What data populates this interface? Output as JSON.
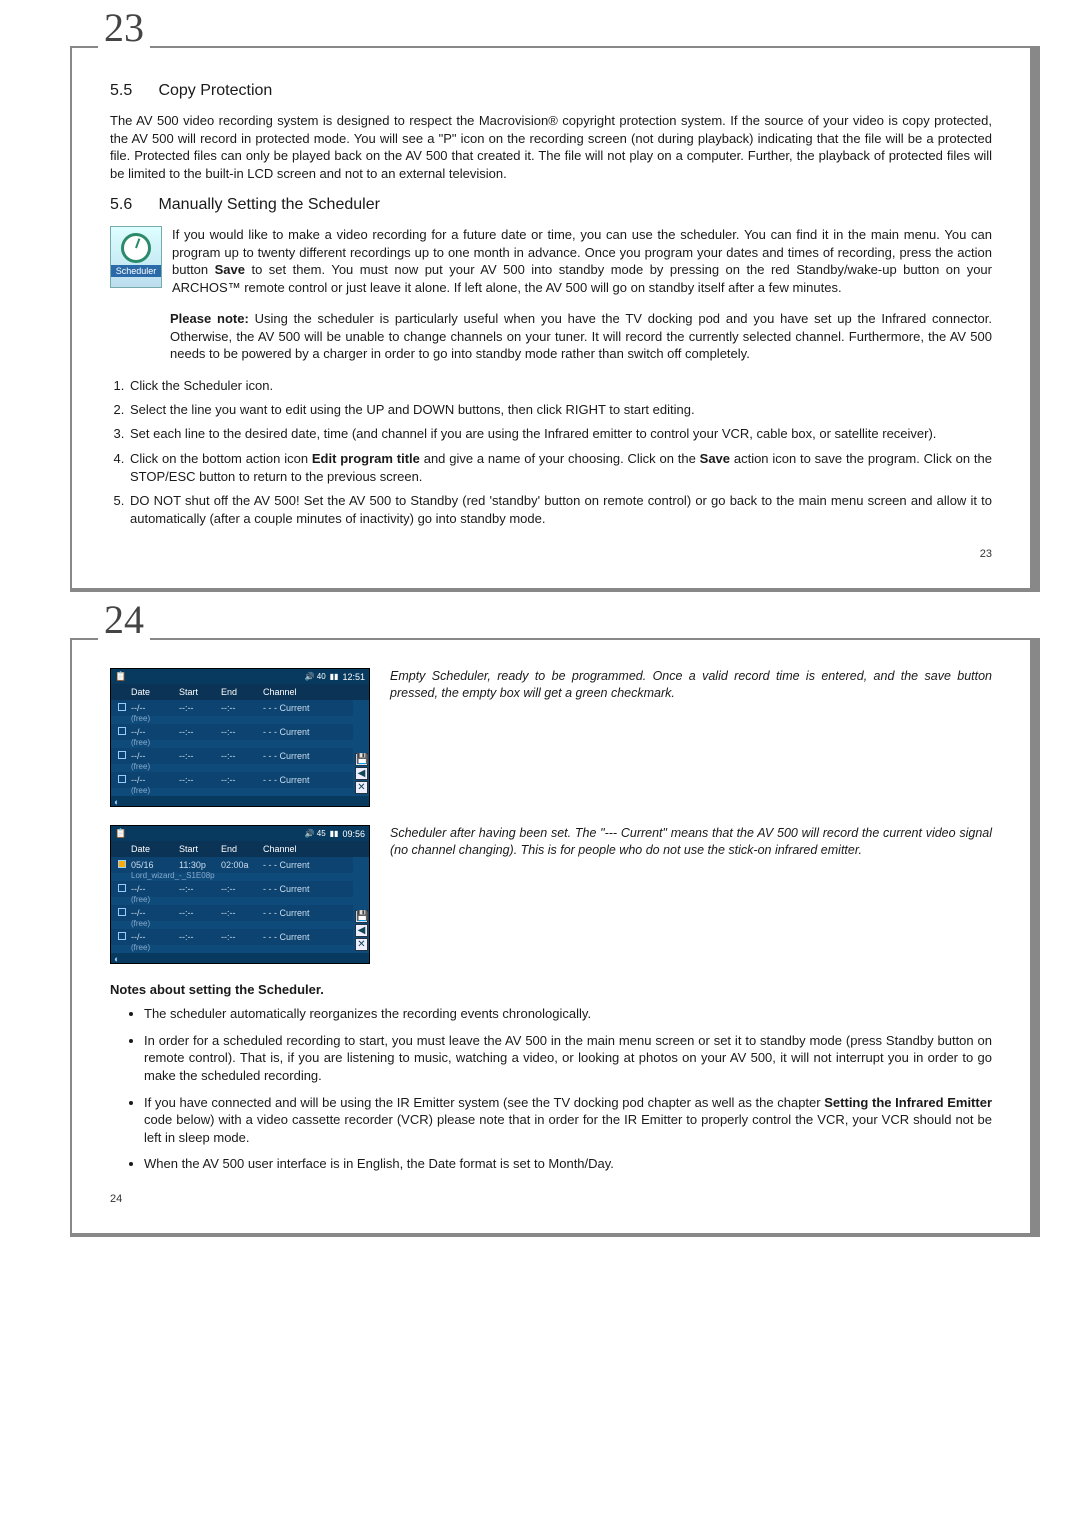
{
  "page23": {
    "bigNum": "23",
    "smallNum": "23",
    "sec55": {
      "num": "5.5",
      "title": "Copy Protection"
    },
    "p55": "The AV 500 video recording system is designed to respect the Macrovision® copyright protection system. If the source of your video is copy protected, the AV 500 will record in protected mode. You will see a \"P\" icon on the recording screen (not during playback) indicating that the file will be a protected file. Protected files can only be played back on the AV 500 that created it. The file will not play on a computer. Further, the playback of protected files will be limited to the built-in LCD screen and not to an external television.",
    "sec56": {
      "num": "5.6",
      "title": "Manually Setting the Scheduler"
    },
    "iconLabel": "Scheduler",
    "p56a_before": "If you would like to make a video recording for a future date or time, you can use the scheduler. You can find it in the main menu. You can program up to twenty different recordings up to one month in advance. Once you program your dates and times of recording, press the action button ",
    "p56a_bold": "Save",
    "p56a_after": " to set them. You must now put your AV 500 into standby mode by pressing on the red Standby/wake-up button on your ARCHOS™ remote control or just leave it alone. If left alone, the AV 500 will go on standby itself after a few minutes.",
    "p56b_lead": "Please note:",
    "p56b": " Using the scheduler is particularly useful when you have the TV docking pod and you have set up the Infrared connector. Otherwise, the AV 500 will be unable to change channels on your tuner. It will record the currently selected channel. Furthermore, the AV 500 needs to be powered by a charger in order to go into standby mode rather than switch off completely.",
    "steps": [
      "Click the Scheduler icon.",
      "Select the line you want to edit using the UP and DOWN buttons, then click RIGHT to start editing.",
      "Set each line to the desired date, time (and channel if you are using the Infrared emitter to control your VCR, cable box, or satellite receiver).",
      "Click on the bottom action icon <b>Edit program title</b> and give a name of your choosing. Click on the <b>Save</b> action icon to save the program. Click on the STOP/ESC button to return to the previous screen.",
      "DO NOT shut off the AV 500! Set the AV 500 to Standby (red 'standby' button on remote control) or go back to the main menu screen and allow it to automatically (after a couple minutes of inactivity) go into standby mode."
    ]
  },
  "page24": {
    "bigNum": "24",
    "smallNum": "24",
    "cap1": "Empty Scheduler, ready to be programmed. Once a valid record time is entered, and the save button pressed, the empty box will get a green checkmark.",
    "cap2": "Scheduler after having been set. The \"--- Current\" means that the AV 500 will record the current video signal (no channel changing). This is for people who do not use the stick-on infrared emitter.",
    "notesH": "Notes about setting the Scheduler.",
    "notes": [
      "The scheduler automatically reorganizes the recording events chronologically.",
      "In order for a scheduled recording to start, you must leave the AV 500 in the main menu screen or set it to standby mode (press Standby button on remote control). That is, if you are listening to music, watching a video, or looking at photos on your AV 500, it will not interrupt you in order to go make the scheduled recording.",
      "If you have connected and will be using the IR Emitter system (see the TV docking pod chapter as well as the chapter <b>Setting the Infrared Emitter</b> code below) with a video cassette recorder (VCR) please note that in order for the IR Emitter to properly control the VCR, your VCR should not be left in sleep mode.",
      "When the AV 500 user interface is in English, the Date format is set to Month/Day."
    ],
    "sched1": {
      "vol": "🔊 40",
      "time": "12:51",
      "hdr": [
        "",
        "Date",
        "Start",
        "End",
        "Channel"
      ],
      "rows": [
        {
          "chk": "□",
          "date": "--/--",
          "start": "--:--",
          "end": "--:--",
          "ch": "- - - Current",
          "sub": "(free)"
        },
        {
          "chk": "□",
          "date": "--/--",
          "start": "--:--",
          "end": "--:--",
          "ch": "- - - Current",
          "sub": "(free)"
        },
        {
          "chk": "□",
          "date": "--/--",
          "start": "--:--",
          "end": "--:--",
          "ch": "- - - Current",
          "sub": "(free)"
        },
        {
          "chk": "□",
          "date": "--/--",
          "start": "--:--",
          "end": "--:--",
          "ch": "- - - Current",
          "sub": "(free)"
        }
      ]
    },
    "sched2": {
      "vol": "🔊 45",
      "time": "09:56",
      "hdr": [
        "",
        "Date",
        "Start",
        "End",
        "Channel"
      ],
      "rows": [
        {
          "chk": "☑",
          "date": "05/16",
          "start": "11:30p",
          "end": "02:00a",
          "ch": "- - - Current",
          "sub": "Lord_wizard_-_S1E08p"
        },
        {
          "chk": "□",
          "date": "--/--",
          "start": "--:--",
          "end": "--:--",
          "ch": "- - - Current",
          "sub": "(free)"
        },
        {
          "chk": "□",
          "date": "--/--",
          "start": "--:--",
          "end": "--:--",
          "ch": "- - - Current",
          "sub": "(free)"
        },
        {
          "chk": "□",
          "date": "--/--",
          "start": "--:--",
          "end": "--:--",
          "ch": "- - - Current",
          "sub": "(free)"
        }
      ]
    }
  }
}
